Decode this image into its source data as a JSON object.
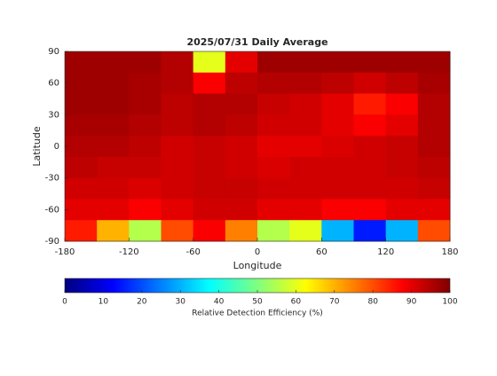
{
  "chart_data": {
    "type": "heatmap",
    "title": "2025/07/31 Daily Average",
    "xlabel": "Longitude",
    "ylabel": "Latitude",
    "xlim": [
      -180,
      180
    ],
    "ylim": [
      -90,
      90
    ],
    "xticks": [
      -180,
      -120,
      -60,
      0,
      60,
      120,
      180
    ],
    "yticks": [
      -90,
      -60,
      -30,
      0,
      30,
      60,
      90
    ],
    "x_edges": [
      -180,
      -150,
      -120,
      -90,
      -60,
      -30,
      0,
      30,
      60,
      90,
      120,
      150,
      180
    ],
    "y_edges": [
      90,
      70,
      50,
      30,
      10,
      -10,
      -30,
      -50,
      -70,
      -90
    ],
    "values": [
      [
        97,
        97,
        97,
        95,
        60,
        90,
        97,
        97,
        97,
        97,
        97,
        97
      ],
      [
        97,
        97,
        96,
        95,
        88,
        94,
        95,
        95,
        94,
        92,
        94,
        96
      ],
      [
        97,
        97,
        96,
        94,
        95,
        95,
        93,
        92,
        90,
        85,
        88,
        95
      ],
      [
        96,
        96,
        95,
        94,
        95,
        94,
        92,
        92,
        90,
        88,
        90,
        95
      ],
      [
        95,
        95,
        94,
        92,
        93,
        92,
        90,
        90,
        91,
        92,
        93,
        95
      ],
      [
        94,
        93,
        93,
        92,
        93,
        92,
        91,
        92,
        92,
        92,
        93,
        94
      ],
      [
        92,
        92,
        91,
        92,
        93,
        93,
        92,
        92,
        92,
        92,
        92,
        93
      ],
      [
        90,
        90,
        88,
        90,
        92,
        92,
        90,
        90,
        88,
        88,
        90,
        90
      ],
      [
        85,
        70,
        55,
        80,
        88,
        75,
        55,
        60,
        30,
        15,
        30,
        80
      ]
    ],
    "colormap": "jet",
    "colorbar": {
      "label": "Relative Detection Efficiency (%)",
      "lim": [
        0,
        100
      ],
      "ticks": [
        0,
        10,
        20,
        30,
        40,
        50,
        60,
        70,
        80,
        90,
        100
      ]
    }
  }
}
